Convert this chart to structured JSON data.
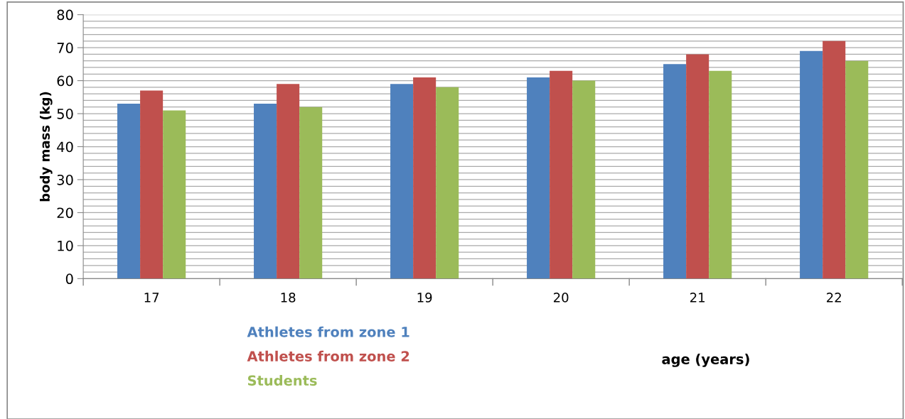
{
  "chart_data": {
    "type": "bar",
    "xlabel": "age (years)",
    "ylabel": "body mass (kg)",
    "categories": [
      "17",
      "18",
      "19",
      "20",
      "21",
      "22"
    ],
    "series": [
      {
        "name": "Athletes from zone 1",
        "color": "#4f81bd",
        "values": [
          53,
          53,
          59,
          61,
          65,
          69
        ]
      },
      {
        "name": "Athletes from zone 2",
        "color": "#c0504d",
        "values": [
          57,
          59,
          61,
          63,
          68,
          72
        ]
      },
      {
        "name": "Students",
        "color": "#9bbb59",
        "values": [
          51,
          52,
          58,
          60,
          63,
          66
        ]
      }
    ],
    "ylim": [
      0,
      80
    ],
    "yticks": [
      0,
      10,
      20,
      30,
      40,
      50,
      60,
      70,
      80
    ],
    "grid": "y",
    "legend": "bottom"
  }
}
